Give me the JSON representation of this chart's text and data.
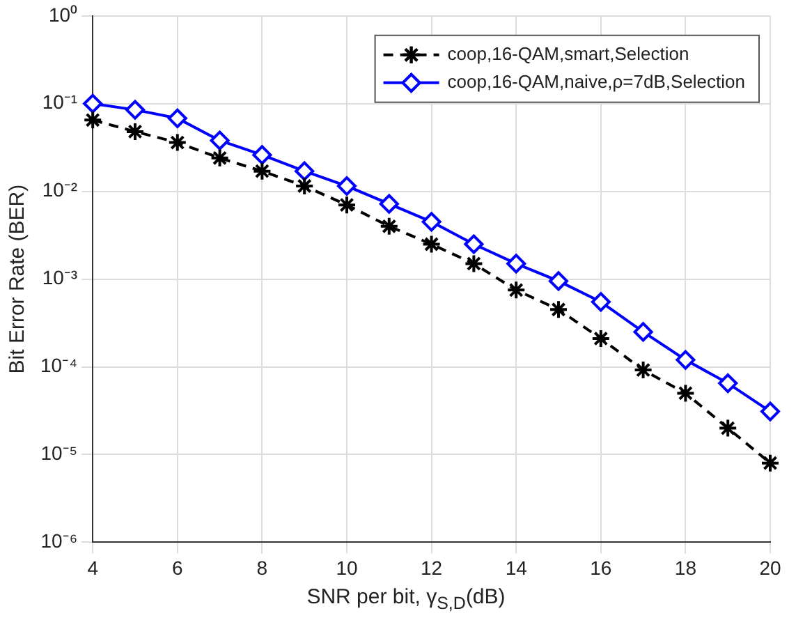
{
  "chart_data": {
    "type": "line",
    "xlabel": "SNR per bit, γ$_{S,D}$(dB)",
    "ylabel": "Bit Error Rate (BER)",
    "x": [
      4,
      5,
      6,
      7,
      8,
      9,
      10,
      11,
      12,
      13,
      14,
      15,
      16,
      17,
      18,
      19,
      20
    ],
    "series": [
      {
        "name": "coop,16-QAM,smart,Selection",
        "color": "#000000",
        "marker": "cross",
        "line_style": "dashed",
        "values": [
          0.065,
          0.048,
          0.036,
          0.024,
          0.017,
          0.0115,
          0.007,
          0.004,
          0.0025,
          0.0015,
          0.00075,
          0.00045,
          0.00021,
          9.2e-05,
          5e-05,
          2e-05,
          8e-06
        ]
      },
      {
        "name": "coop,16-QAM,naive,ρ=7dB,Selection",
        "color": "#0000ff",
        "marker": "diamond",
        "line_style": "solid",
        "values": [
          0.1,
          0.085,
          0.068,
          0.038,
          0.026,
          0.017,
          0.0115,
          0.0072,
          0.0045,
          0.0025,
          0.0015,
          0.00095,
          0.00055,
          0.00025,
          0.00012,
          6.5e-05,
          3.1e-05
        ]
      }
    ],
    "log": "y",
    "grid": true,
    "legend": "top right",
    "xlim": [
      4,
      20
    ],
    "xticks": [
      4,
      6,
      8,
      10,
      12,
      14,
      16,
      18,
      20
    ],
    "ylim": [
      1e-06,
      1
    ],
    "yticks": [
      {
        "value": 1e-06,
        "label": "10⁻⁶"
      },
      {
        "value": 1e-05,
        "label": "10⁻⁵"
      },
      {
        "value": 0.0001,
        "label": "10⁻⁴"
      },
      {
        "value": 0.001,
        "label": "10⁻³"
      },
      {
        "value": 0.01,
        "label": "10⁻²"
      },
      {
        "value": 0.1,
        "label": "10⁻¹"
      },
      {
        "value": 1,
        "label": "10⁰"
      }
    ]
  }
}
